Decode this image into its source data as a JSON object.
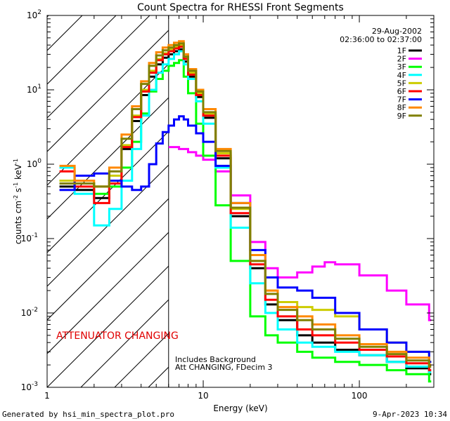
{
  "chart_data": {
    "type": "line",
    "title": "Count Spectra for RHESSI Front Segments",
    "xlabel": "Energy (keV)",
    "ylabel": "counts cm-2 s-1 keV-1",
    "xscale": "log",
    "yscale": "log",
    "xlim": [
      1,
      300
    ],
    "ylim": [
      0.001,
      100
    ],
    "x_ticks": [
      {
        "value": 1,
        "label": "1"
      },
      {
        "value": 10,
        "label": "10"
      },
      {
        "value": 100,
        "label": "100"
      }
    ],
    "y_ticks": [
      {
        "value": 0.001,
        "mantissa": "10",
        "exponent": "-3"
      },
      {
        "value": 0.01,
        "mantissa": "10",
        "exponent": "-2"
      },
      {
        "value": 0.1,
        "mantissa": "10",
        "exponent": "-1"
      },
      {
        "value": 1,
        "mantissa": "10",
        "exponent": "0"
      },
      {
        "value": 10,
        "mantissa": "10",
        "exponent": "1"
      },
      {
        "value": 100,
        "mantissa": "10",
        "exponent": "2"
      }
    ],
    "date_label": "29-Aug-2002",
    "time_range_label": "02:36:00 to 02:37:00",
    "attenuator_boundary_kev": 6.0,
    "annotations": {
      "attenuator": "ATTENUATOR CHANGING",
      "background": "Includes Background",
      "settings": "Att CHANGING, FDecim 3"
    },
    "series": [
      {
        "name": "1F",
        "color": "#000000",
        "x": [
          1.2,
          1.5,
          2,
          2.5,
          3,
          3.5,
          4,
          4.5,
          5,
          5.5,
          6,
          6.5,
          7,
          7.5,
          8,
          9,
          10,
          12,
          15,
          20,
          25,
          30,
          40,
          50,
          70,
          100,
          150,
          200,
          280
        ],
        "values": [
          0.5,
          0.45,
          0.35,
          0.6,
          1.6,
          3.8,
          8.5,
          15,
          22,
          27,
          30,
          33,
          35,
          24,
          15,
          8,
          4.2,
          1.2,
          0.2,
          0.04,
          0.013,
          0.008,
          0.005,
          0.004,
          0.0032,
          0.0027,
          0.0022,
          0.0018,
          0.0015
        ]
      },
      {
        "name": "2F",
        "color": "#ff00ff",
        "x": [
          6,
          7,
          8,
          9,
          10,
          12,
          15,
          20,
          25,
          30,
          40,
          50,
          60,
          70,
          100,
          150,
          200,
          280
        ],
        "values": [
          1.7,
          1.6,
          1.45,
          1.3,
          1.15,
          0.8,
          0.38,
          0.09,
          0.04,
          0.03,
          0.035,
          0.042,
          0.048,
          0.045,
          0.032,
          0.02,
          0.013,
          0.008
        ]
      },
      {
        "name": "3F",
        "color": "#00ff00",
        "x": [
          1.2,
          1.5,
          2,
          2.5,
          3,
          3.5,
          4,
          4.5,
          5,
          5.5,
          6,
          6.5,
          7,
          7.5,
          8,
          9,
          10,
          12,
          15,
          20,
          25,
          30,
          40,
          50,
          70,
          100,
          150,
          200,
          280
        ],
        "values": [
          0.6,
          0.55,
          0.4,
          0.5,
          0.9,
          2.0,
          4.8,
          9.5,
          14,
          18,
          21,
          23,
          25,
          15,
          9,
          3.5,
          1.3,
          0.28,
          0.05,
          0.009,
          0.005,
          0.004,
          0.003,
          0.0025,
          0.0022,
          0.002,
          0.0017,
          0.0015,
          0.0012
        ]
      },
      {
        "name": "4F",
        "color": "#00ffff",
        "x": [
          1.2,
          1.5,
          2,
          2.5,
          3,
          3.5,
          4,
          4.5,
          5,
          5.5,
          6,
          6.5,
          7,
          7.5,
          8,
          9,
          10,
          12,
          15,
          20,
          25,
          30,
          40,
          50,
          70,
          100,
          150,
          200,
          280
        ],
        "values": [
          0.9,
          0.4,
          0.15,
          0.25,
          0.6,
          1.6,
          4.5,
          10,
          17,
          22,
          26,
          30,
          33,
          22,
          14,
          7,
          3.5,
          0.9,
          0.14,
          0.025,
          0.01,
          0.006,
          0.004,
          0.0035,
          0.003,
          0.0027,
          0.0022,
          0.0019,
          0.0016
        ]
      },
      {
        "name": "5F",
        "color": "#cccc00",
        "x": [
          1.2,
          1.5,
          2,
          2.5,
          3,
          3.5,
          4,
          4.5,
          5,
          5.5,
          6,
          6.5,
          7,
          7.5,
          8,
          9,
          10,
          12,
          15,
          20,
          25,
          30,
          40,
          50,
          70,
          100,
          150,
          200,
          280
        ],
        "values": [
          0.6,
          0.55,
          0.5,
          0.7,
          1.8,
          4.5,
          10,
          18,
          26,
          31,
          35,
          38,
          40,
          27,
          17,
          9,
          4.8,
          1.4,
          0.25,
          0.05,
          0.02,
          0.014,
          0.012,
          0.011,
          0.009,
          0.006,
          0.004,
          0.003,
          0.0022
        ]
      },
      {
        "name": "6F",
        "color": "#ff0000",
        "x": [
          1.2,
          1.5,
          2,
          2.5,
          3,
          3.5,
          4,
          4.5,
          5,
          5.5,
          6,
          6.5,
          7,
          7.5,
          8,
          9,
          10,
          12,
          15,
          20,
          25,
          30,
          40,
          50,
          70,
          100,
          150,
          200,
          280
        ],
        "values": [
          0.8,
          0.5,
          0.3,
          0.55,
          1.7,
          4.3,
          9.5,
          17,
          25,
          30,
          33,
          36,
          38,
          26,
          16,
          8.5,
          4.5,
          1.3,
          0.22,
          0.045,
          0.015,
          0.009,
          0.006,
          0.005,
          0.004,
          0.0032,
          0.0026,
          0.0021,
          0.0017
        ]
      },
      {
        "name": "7F",
        "color": "#0000ff",
        "x": [
          1.2,
          1.5,
          2,
          2.5,
          3,
          3.5,
          4,
          4.5,
          5,
          5.5,
          6,
          6.5,
          7,
          7.5,
          8,
          9,
          10,
          12,
          15,
          20,
          25,
          30,
          40,
          50,
          70,
          100,
          150,
          200,
          280
        ],
        "values": [
          0.45,
          0.7,
          0.75,
          0.6,
          0.5,
          0.45,
          0.5,
          1.0,
          1.9,
          2.7,
          3.3,
          4.0,
          4.4,
          4.0,
          3.3,
          2.6,
          2.0,
          0.95,
          0.3,
          0.07,
          0.03,
          0.022,
          0.02,
          0.016,
          0.01,
          0.006,
          0.004,
          0.003,
          0.0022
        ]
      },
      {
        "name": "8F",
        "color": "#ff8800",
        "x": [
          1.2,
          1.5,
          2,
          2.5,
          3,
          3.5,
          4,
          4.5,
          5,
          5.5,
          6,
          6.5,
          7,
          7.5,
          8,
          9,
          10,
          12,
          15,
          20,
          25,
          30,
          40,
          50,
          70,
          100,
          150,
          200,
          280
        ],
        "values": [
          0.95,
          0.6,
          0.5,
          0.9,
          2.5,
          6,
          13,
          23,
          32,
          37,
          40,
          43,
          45,
          30,
          19,
          10,
          5.5,
          1.6,
          0.3,
          0.06,
          0.02,
          0.012,
          0.009,
          0.007,
          0.005,
          0.0038,
          0.003,
          0.0025,
          0.002
        ]
      },
      {
        "name": "9F",
        "color": "#808000",
        "x": [
          1.2,
          1.5,
          2,
          2.5,
          3,
          3.5,
          4,
          4.5,
          5,
          5.5,
          6,
          6.5,
          7,
          7.5,
          8,
          9,
          10,
          12,
          15,
          20,
          25,
          30,
          40,
          50,
          70,
          100,
          150,
          200,
          280
        ],
        "values": [
          0.55,
          0.55,
          0.5,
          0.8,
          2.2,
          5.5,
          12,
          21,
          29,
          34,
          37,
          40,
          42,
          28,
          18,
          9.5,
          5,
          1.5,
          0.26,
          0.05,
          0.018,
          0.011,
          0.008,
          0.006,
          0.0045,
          0.0035,
          0.0028,
          0.0023,
          0.0019
        ]
      }
    ]
  },
  "footer": {
    "generator": "Generated by hsi_min_spectra_plot.pro",
    "timestamp": "9-Apr-2023 10:34"
  }
}
